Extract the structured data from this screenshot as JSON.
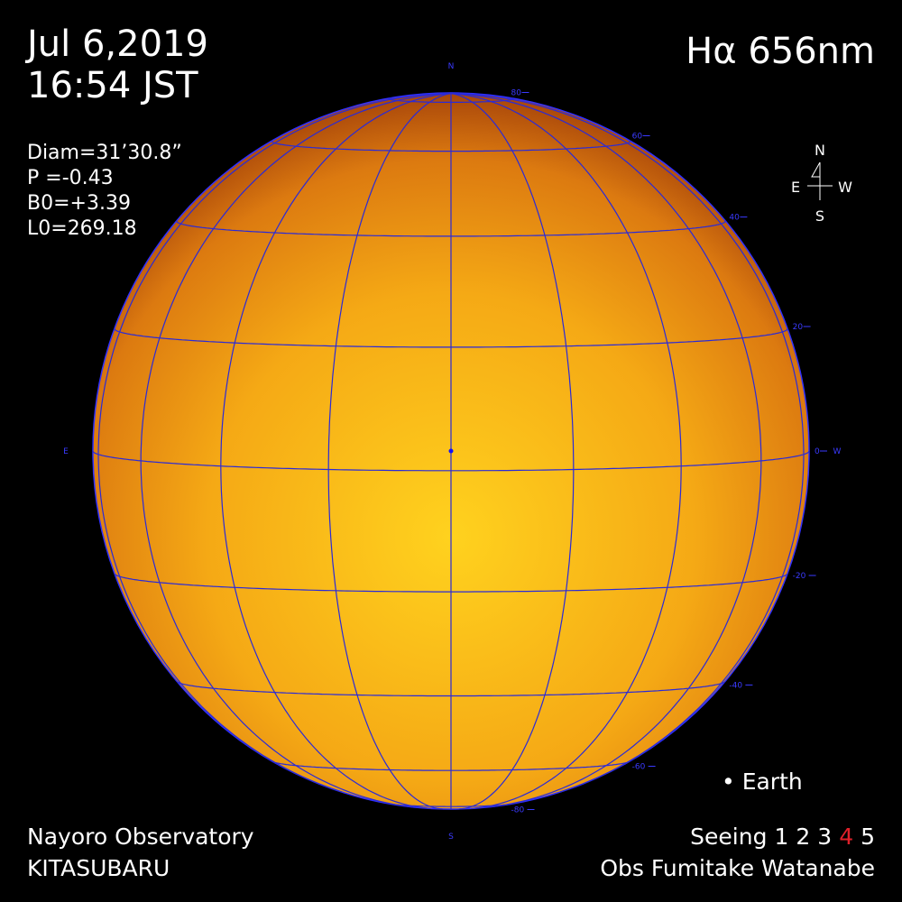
{
  "header": {
    "date": "Jul 6,2019",
    "time": "16:54 JST",
    "band": "Hα 656nm"
  },
  "parameters": [
    "Diam=31’30.8”",
    "P  =-0.43",
    "B0=+3.39",
    "L0=269.18"
  ],
  "compass": {
    "north": "N",
    "east": "E",
    "west": "W",
    "south": "S"
  },
  "grid": {
    "north": "N",
    "south": "S",
    "east": "E",
    "west": "W",
    "latitudes": [
      80,
      60,
      40,
      20,
      0,
      -20,
      -40,
      -60,
      -80
    ]
  },
  "legend": "• Earth",
  "footer": {
    "observatory": "Nayoro Observatory",
    "telescope": "KITASUBARU",
    "seeing_label": "Seeing",
    "seeing_scale": [
      "1",
      "2",
      "3",
      "4",
      "5"
    ],
    "seeing_selected": "4",
    "seeing_selected_color": "#e0202a",
    "observer": "Obs Fumitake Watanabe"
  }
}
